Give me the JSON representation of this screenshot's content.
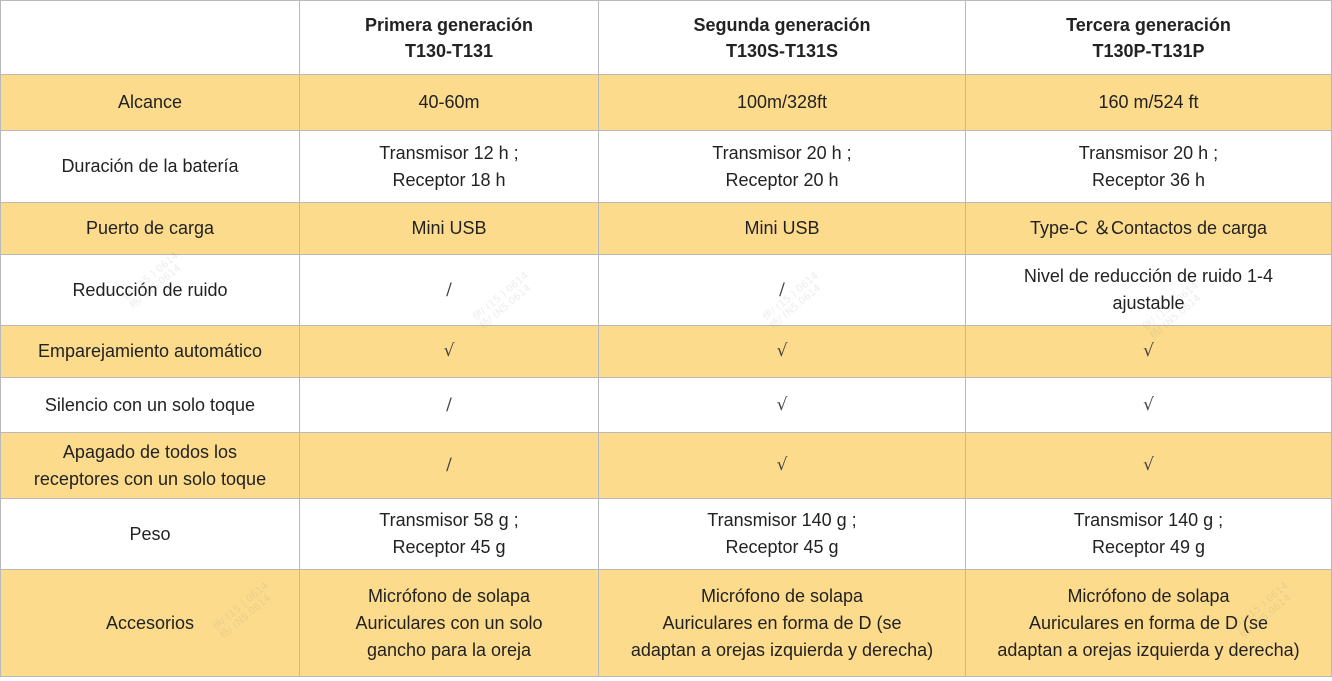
{
  "header": {
    "gen1": {
      "name": "Primera generación",
      "model": "T130-T131"
    },
    "gen2": {
      "name": "Segunda generación",
      "model": "T130S-T131S"
    },
    "gen3": {
      "name": "Tercera generación",
      "model": "T130P-T131P"
    }
  },
  "rows": [
    {
      "label": [
        "Alcance"
      ],
      "c1": [
        "40-60m"
      ],
      "c2": [
        "100m/328ft"
      ],
      "c3": [
        "160 m/524 ft"
      ]
    },
    {
      "label": [
        "Duración de la batería"
      ],
      "c1": [
        "Transmisor 12 h ;",
        "Receptor 18 h"
      ],
      "c2": [
        "Transmisor 20 h ;",
        "Receptor 20 h"
      ],
      "c3": [
        "Transmisor  20 h ;",
        "Receptor 36 h"
      ]
    },
    {
      "label": [
        "Puerto de carga"
      ],
      "c1": [
        "Mini USB"
      ],
      "c2": [
        "Mini USB"
      ],
      "c3": [
        "Type-C ＆Contactos de carga"
      ]
    },
    {
      "label": [
        "Reducción de ruido"
      ],
      "c1": [
        "/"
      ],
      "c2": [
        "/"
      ],
      "c3": [
        "Nivel de reducción de ruido 1-4",
        "ajustable"
      ]
    },
    {
      "label": [
        "Emparejamiento automático"
      ],
      "c1": [
        "√"
      ],
      "c2": [
        "√"
      ],
      "c3": [
        "√"
      ]
    },
    {
      "label": [
        "Silencio con un solo toque"
      ],
      "c1": [
        "/"
      ],
      "c2": [
        "√"
      ],
      "c3": [
        "√"
      ]
    },
    {
      "label": [
        "Apagado de todos los",
        "receptores con un solo toque"
      ],
      "c1": [
        "/"
      ],
      "c2": [
        "√"
      ],
      "c3": [
        "√"
      ]
    },
    {
      "label": [
        "Peso"
      ],
      "c1": [
        "Transmisor 58 g ;",
        "Receptor 45 g"
      ],
      "c2": [
        "Transmisor 140 g ;",
        "Receptor 45 g"
      ],
      "c3": [
        "Transmisor 140 g ;",
        "Receptor 49 g"
      ]
    },
    {
      "label": [
        "Accesorios"
      ],
      "c1": [
        "Micrófono de solapa",
        "Auriculares con un solo",
        "gancho para la oreja"
      ],
      "c2": [
        "Micrófono de solapa",
        "Auriculares en forma de D (se",
        "adaptan a orejas izquierda y derecha)"
      ],
      "c3": [
        "Micrófono de solapa",
        "Auriculares en forma de D (se",
        "adaptan a orejas izquierda y derecha)"
      ]
    }
  ],
  "watermark": {
    "line1": "伊/ (15 ) 0614",
    "line2": "杨/ (N5.0614"
  }
}
